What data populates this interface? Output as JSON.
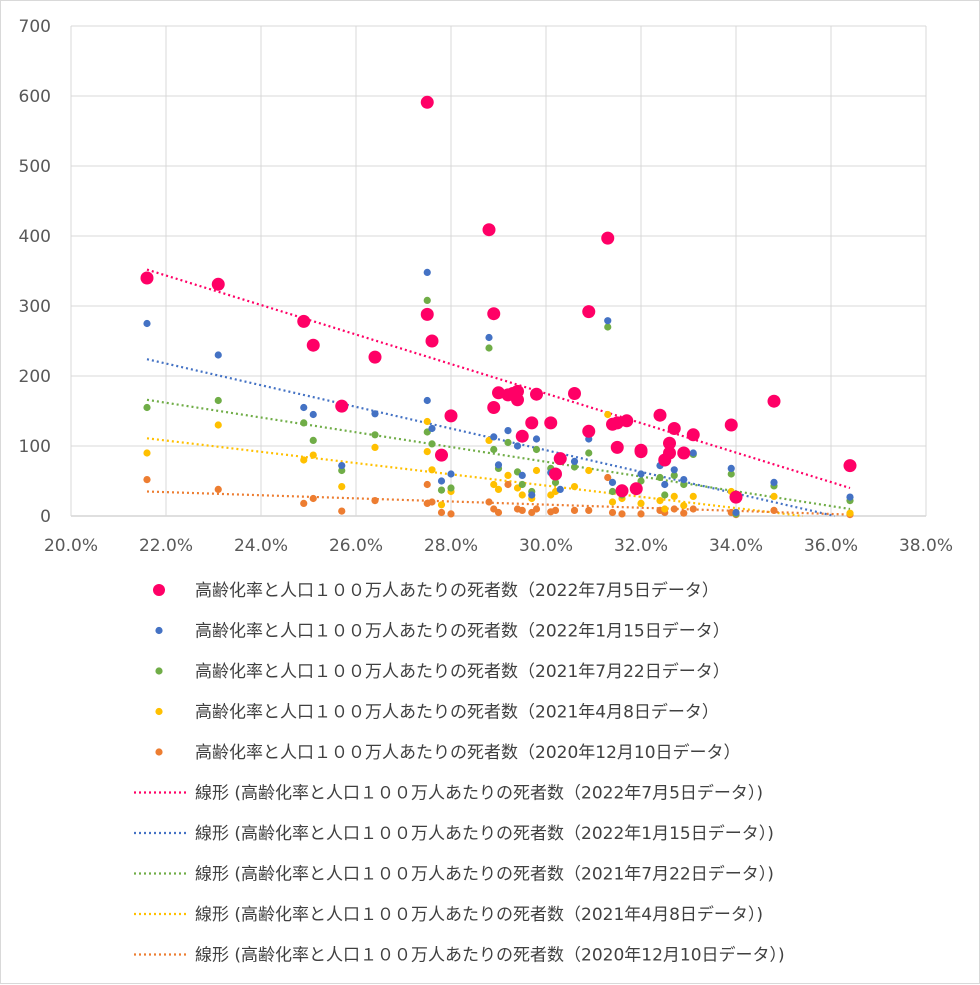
{
  "chart_data": {
    "type": "scatter",
    "title": "",
    "xlabel": "",
    "ylabel": "",
    "xlim": [
      0.2,
      0.38
    ],
    "ylim": [
      0,
      700
    ],
    "x_ticks": [
      "20.0%",
      "22.0%",
      "24.0%",
      "26.0%",
      "28.0%",
      "30.0%",
      "32.0%",
      "34.0%",
      "36.0%",
      "38.0%"
    ],
    "y_ticks": [
      "0",
      "100",
      "200",
      "300",
      "400",
      "500",
      "600",
      "700"
    ],
    "grid": true,
    "legend_position": "bottom",
    "series": [
      {
        "name": "高齢化率と人口１００万人あたりの死者数（2022年7月5日データ）",
        "color": "#ff0066",
        "marker": "large",
        "x": [
          0.216,
          0.231,
          0.249,
          0.251,
          0.257,
          0.264,
          0.275,
          0.275,
          0.276,
          0.278,
          0.28,
          0.288,
          0.289,
          0.289,
          0.29,
          0.292,
          0.293,
          0.294,
          0.294,
          0.295,
          0.297,
          0.298,
          0.301,
          0.302,
          0.303,
          0.306,
          0.309,
          0.309,
          0.313,
          0.314,
          0.315,
          0.315,
          0.316,
          0.317,
          0.319,
          0.32,
          0.32,
          0.324,
          0.325,
          0.326,
          0.326,
          0.327,
          0.329,
          0.331,
          0.339,
          0.34,
          0.348,
          0.364
        ],
        "y": [
          340,
          331,
          278,
          244,
          157,
          227,
          591,
          288,
          250,
          87,
          143,
          409,
          289,
          155,
          176,
          173,
          175,
          178,
          166,
          114,
          133,
          174,
          133,
          60,
          82,
          175,
          292,
          121,
          397,
          131,
          98,
          133,
          36,
          136,
          39,
          92,
          94,
          144,
          80,
          104,
          90,
          125,
          90,
          116,
          130,
          27,
          164,
          72
        ]
      },
      {
        "name": "高齢化率と人口１００万人あたりの死者数（2022年1月15日データ）",
        "color": "#4472c4",
        "marker": "small",
        "x": [
          0.216,
          0.231,
          0.249,
          0.251,
          0.257,
          0.264,
          0.275,
          0.275,
          0.276,
          0.278,
          0.28,
          0.288,
          0.289,
          0.29,
          0.292,
          0.294,
          0.295,
          0.297,
          0.298,
          0.301,
          0.303,
          0.306,
          0.309,
          0.313,
          0.314,
          0.316,
          0.32,
          0.324,
          0.325,
          0.327,
          0.329,
          0.331,
          0.339,
          0.34,
          0.348,
          0.364
        ],
        "y": [
          275,
          230,
          155,
          145,
          72,
          146,
          348,
          165,
          125,
          50,
          60,
          255,
          113,
          73,
          122,
          100,
          58,
          30,
          110,
          62,
          38,
          78,
          110,
          279,
          48,
          40,
          60,
          72,
          45,
          66,
          52,
          90,
          68,
          5,
          48,
          27
        ]
      },
      {
        "name": "高齢化率と人口１００万人あたりの死者数（2021年7月22日データ）",
        "color": "#70ad47",
        "marker": "small",
        "x": [
          0.216,
          0.231,
          0.249,
          0.251,
          0.257,
          0.264,
          0.275,
          0.275,
          0.276,
          0.278,
          0.28,
          0.288,
          0.289,
          0.29,
          0.292,
          0.294,
          0.295,
          0.297,
          0.298,
          0.301,
          0.302,
          0.306,
          0.309,
          0.313,
          0.314,
          0.316,
          0.32,
          0.324,
          0.325,
          0.327,
          0.329,
          0.331,
          0.339,
          0.34,
          0.348,
          0.364
        ],
        "y": [
          155,
          165,
          133,
          108,
          65,
          116,
          308,
          120,
          103,
          37,
          40,
          240,
          95,
          68,
          105,
          63,
          45,
          35,
          95,
          68,
          48,
          70,
          90,
          270,
          35,
          30,
          50,
          55,
          30,
          58,
          45,
          88,
          60,
          3,
          43,
          22
        ]
      },
      {
        "name": "高齢化率と人口１００万人あたりの死者数（2021年4月8日データ）",
        "color": "#ffc000",
        "marker": "small",
        "x": [
          0.216,
          0.231,
          0.249,
          0.251,
          0.257,
          0.264,
          0.275,
          0.275,
          0.276,
          0.278,
          0.28,
          0.288,
          0.289,
          0.29,
          0.292,
          0.294,
          0.295,
          0.297,
          0.298,
          0.301,
          0.302,
          0.306,
          0.309,
          0.313,
          0.314,
          0.316,
          0.32,
          0.324,
          0.325,
          0.327,
          0.329,
          0.331,
          0.339,
          0.34,
          0.348,
          0.364
        ],
        "y": [
          90,
          130,
          80,
          87,
          42,
          98,
          135,
          92,
          66,
          16,
          35,
          108,
          45,
          38,
          58,
          40,
          30,
          25,
          65,
          30,
          35,
          42,
          65,
          145,
          20,
          25,
          18,
          22,
          10,
          28,
          15,
          28,
          35,
          5,
          28,
          4
        ]
      },
      {
        "name": "高齢化率と人口１００万人あたりの死者数（2020年12月10日データ）",
        "color": "#ed7d31",
        "marker": "small",
        "x": [
          0.216,
          0.231,
          0.249,
          0.251,
          0.257,
          0.264,
          0.275,
          0.275,
          0.276,
          0.278,
          0.28,
          0.288,
          0.289,
          0.29,
          0.292,
          0.294,
          0.295,
          0.297,
          0.298,
          0.301,
          0.302,
          0.306,
          0.309,
          0.313,
          0.314,
          0.316,
          0.32,
          0.324,
          0.325,
          0.327,
          0.329,
          0.331,
          0.339,
          0.34,
          0.348,
          0.364
        ],
        "y": [
          52,
          38,
          18,
          25,
          7,
          22,
          45,
          18,
          20,
          5,
          3,
          20,
          10,
          5,
          45,
          10,
          8,
          5,
          10,
          6,
          8,
          8,
          8,
          55,
          5,
          3,
          3,
          8,
          5,
          10,
          4,
          10,
          5,
          2,
          8,
          2
        ]
      }
    ],
    "trendlines": [
      {
        "name": "線形 (高齢化率と人口１００万人あたりの死者数（2022年7月5日データ）)",
        "color": "#ff0066",
        "type": "linear",
        "x": [
          0.216,
          0.364
        ],
        "y": [
          352,
          40
        ]
      },
      {
        "name": "線形 (高齢化率と人口１００万人あたりの死者数（2022年1月15日データ）)",
        "color": "#4472c4",
        "type": "linear",
        "x": [
          0.216,
          0.364
        ],
        "y": [
          224,
          -5
        ]
      },
      {
        "name": "線形 (高齢化率と人口１００万人あたりの死者数（2021年7月22日データ）)",
        "color": "#70ad47",
        "type": "linear",
        "x": [
          0.216,
          0.364
        ],
        "y": [
          166,
          10
        ]
      },
      {
        "name": "線形 (高齢化率と人口１００万人あたりの死者数（2021年4月8日データ）)",
        "color": "#ffc000",
        "type": "linear",
        "x": [
          0.216,
          0.364
        ],
        "y": [
          111,
          -8
        ]
      },
      {
        "name": "線形 (高齢化率と人口１００万人あたりの死者数（2020年12月10日データ）)",
        "color": "#ed7d31",
        "type": "linear",
        "x": [
          0.216,
          0.364
        ],
        "y": [
          35,
          2
        ]
      }
    ]
  }
}
